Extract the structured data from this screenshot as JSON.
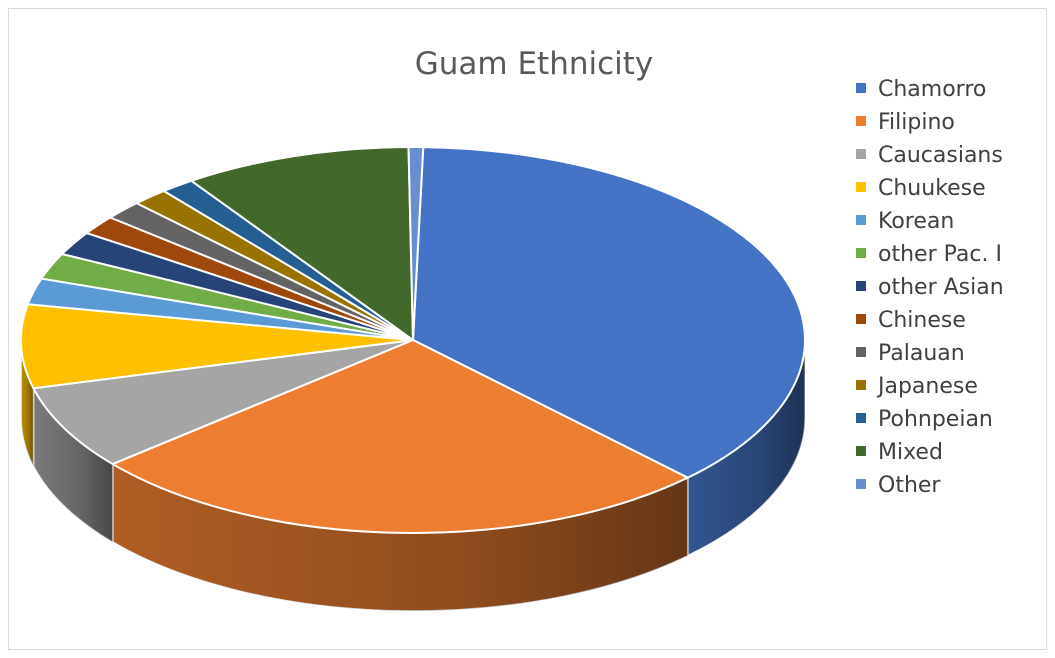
{
  "chart_data": {
    "type": "pie",
    "title": "Guam Ethnicity",
    "legend_position": "right",
    "style": "3d-perspective",
    "slices": [
      {
        "label": "Chamorro",
        "value": 37.3,
        "color": "#4472C4"
      },
      {
        "label": "Filipino",
        "value": 26.3,
        "color": "#ED7D31"
      },
      {
        "label": "Caucasians",
        "value": 7.1,
        "color": "#A5A5A5"
      },
      {
        "label": "Chuukese",
        "value": 7.0,
        "color": "#FFC000"
      },
      {
        "label": "Korean",
        "value": 2.2,
        "color": "#5B9BD5"
      },
      {
        "label": "other Pac. I",
        "value": 2.2,
        "color": "#70AD47"
      },
      {
        "label": "other Asian",
        "value": 2.0,
        "color": "#264478"
      },
      {
        "label": "Chinese",
        "value": 1.6,
        "color": "#9E480E"
      },
      {
        "label": "Palauan",
        "value": 1.6,
        "color": "#636363"
      },
      {
        "label": "Japanese",
        "value": 1.5,
        "color": "#997300"
      },
      {
        "label": "Pohnpeian",
        "value": 1.4,
        "color": "#255E91"
      },
      {
        "label": "Mixed",
        "value": 9.4,
        "color": "#43682B"
      },
      {
        "label": "Other",
        "value": 0.6,
        "color": "#698ED0"
      }
    ]
  }
}
